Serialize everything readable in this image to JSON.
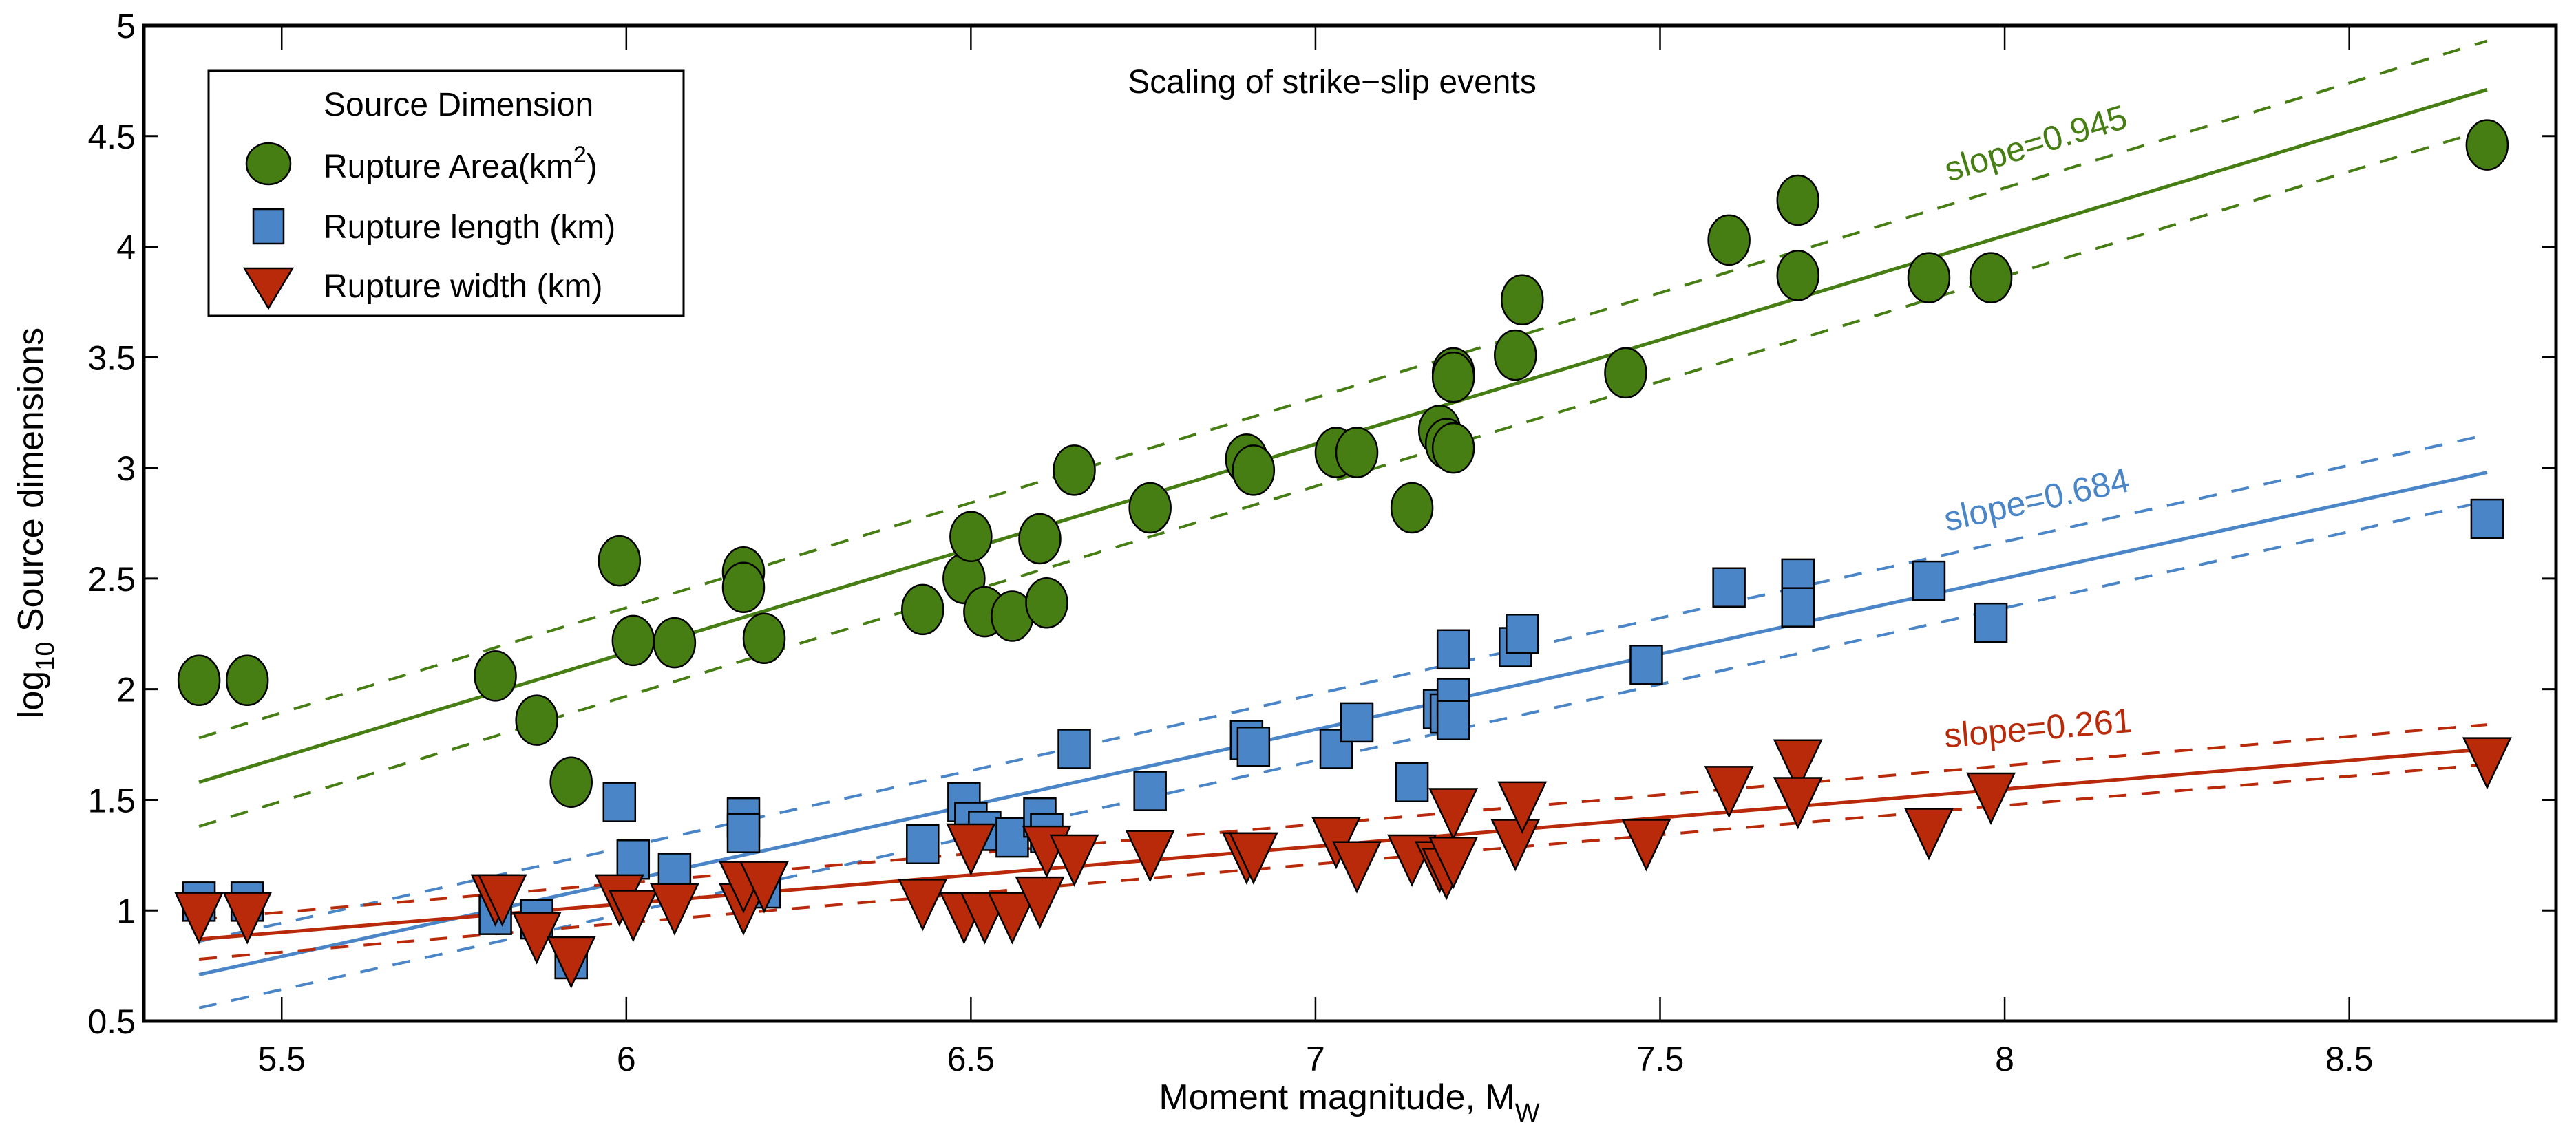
{
  "chart_data": {
    "type": "scatter",
    "title": "Scaling of strike−slip events",
    "xlabel": "Moment magnitude, M",
    "xlabel_subscript": "W",
    "ylabel_prefix": "log",
    "ylabel_subscript": "10",
    "ylabel_suffix": " Source dimensions",
    "xlim": [
      5.3,
      8.8
    ],
    "ylim": [
      0.5,
      5
    ],
    "xticks": [
      "5.5",
      "6",
      "6.5",
      "7",
      "7.5",
      "8",
      "8.5"
    ],
    "xtick_values": [
      5.5,
      6,
      6.5,
      7,
      7.5,
      8,
      8.5
    ],
    "yticks": [
      "0.5",
      "1",
      "1.5",
      "2",
      "2.5",
      "3",
      "3.5",
      "4",
      "4.5",
      "5"
    ],
    "ytick_values": [
      0.5,
      1,
      1.5,
      2,
      2.5,
      3,
      3.5,
      4,
      4.5,
      5
    ],
    "grid": false,
    "legend": {
      "placement": "top-left",
      "title": "Source Dimension",
      "entries": [
        {
          "label": "Rupture Area(km",
          "superscript": "2",
          "suffix": ")",
          "marker": "circle",
          "color": "#467e14"
        },
        {
          "label": "Rupture length (km)",
          "marker": "square",
          "color": "#4a85c8"
        },
        {
          "label": "Rupture width (km)",
          "marker": "triangle-down",
          "color": "#b82a0a"
        }
      ]
    },
    "series": [
      {
        "name": "Rupture Area(km2)",
        "marker": "circle",
        "color": "#467e14",
        "slope_label": "slope=0.945",
        "fit": {
          "x": [
            5.38,
            8.7
          ],
          "y": [
            1.58,
            4.71
          ],
          "band": 0.2
        },
        "points": [
          [
            5.38,
            2.04
          ],
          [
            5.45,
            2.04
          ],
          [
            5.81,
            2.06
          ],
          [
            5.87,
            1.86
          ],
          [
            5.92,
            1.58
          ],
          [
            5.99,
            2.58
          ],
          [
            6.01,
            2.22
          ],
          [
            6.07,
            2.21
          ],
          [
            6.17,
            2.53
          ],
          [
            6.17,
            2.46
          ],
          [
            6.2,
            2.23
          ],
          [
            6.43,
            2.36
          ],
          [
            6.49,
            2.5
          ],
          [
            6.5,
            2.69
          ],
          [
            6.52,
            2.35
          ],
          [
            6.56,
            2.33
          ],
          [
            6.6,
            2.68
          ],
          [
            6.61,
            2.39
          ],
          [
            6.65,
            2.99
          ],
          [
            6.76,
            2.82
          ],
          [
            6.9,
            3.04
          ],
          [
            6.91,
            2.99
          ],
          [
            7.03,
            3.07
          ],
          [
            7.06,
            3.07
          ],
          [
            7.14,
            2.82
          ],
          [
            7.18,
            3.17
          ],
          [
            7.19,
            3.11
          ],
          [
            7.2,
            3.09
          ],
          [
            7.2,
            3.43
          ],
          [
            7.2,
            3.41
          ],
          [
            7.29,
            3.51
          ],
          [
            7.3,
            3.76
          ],
          [
            7.45,
            3.43
          ],
          [
            7.6,
            4.03
          ],
          [
            7.7,
            4.21
          ],
          [
            7.7,
            3.87
          ],
          [
            7.89,
            3.86
          ],
          [
            7.98,
            3.86
          ],
          [
            8.7,
            4.46
          ]
        ]
      },
      {
        "name": "Rupture length (km)",
        "marker": "square",
        "color": "#4a85c8",
        "slope_label": "slope=0.684",
        "fit": {
          "x": [
            5.38,
            8.7
          ],
          "y": [
            0.71,
            2.98
          ],
          "band": 0.15
        },
        "points": [
          [
            5.38,
            1.04
          ],
          [
            5.45,
            1.04
          ],
          [
            5.81,
            0.98
          ],
          [
            5.87,
            0.96
          ],
          [
            5.92,
            0.78
          ],
          [
            5.99,
            1.49
          ],
          [
            6.01,
            1.23
          ],
          [
            6.07,
            1.17
          ],
          [
            6.17,
            1.42
          ],
          [
            6.17,
            1.35
          ],
          [
            6.2,
            1.1
          ],
          [
            6.43,
            1.3
          ],
          [
            6.49,
            1.49
          ],
          [
            6.5,
            1.4
          ],
          [
            6.52,
            1.36
          ],
          [
            6.56,
            1.33
          ],
          [
            6.6,
            1.42
          ],
          [
            6.61,
            1.35
          ],
          [
            6.65,
            1.73
          ],
          [
            6.76,
            1.54
          ],
          [
            6.9,
            1.77
          ],
          [
            6.91,
            1.74
          ],
          [
            7.03,
            1.73
          ],
          [
            7.06,
            1.85
          ],
          [
            7.14,
            1.58
          ],
          [
            7.18,
            1.91
          ],
          [
            7.19,
            1.89
          ],
          [
            7.2,
            1.96
          ],
          [
            7.2,
            2.18
          ],
          [
            7.2,
            1.86
          ],
          [
            7.29,
            2.19
          ],
          [
            7.3,
            2.25
          ],
          [
            7.48,
            2.11
          ],
          [
            7.6,
            2.46
          ],
          [
            7.7,
            2.5
          ],
          [
            7.7,
            2.37
          ],
          [
            7.89,
            2.49
          ],
          [
            7.98,
            2.3
          ],
          [
            8.7,
            2.77
          ]
        ]
      },
      {
        "name": "Rupture width (km)",
        "marker": "triangle-down",
        "color": "#b82a0a",
        "slope_label": "slope=0.261",
        "fit": {
          "x": [
            5.38,
            8.7
          ],
          "y": [
            0.87,
            1.73
          ],
          "band": 0.09
        },
        "points": [
          [
            5.38,
            0.98
          ],
          [
            5.45,
            0.98
          ],
          [
            5.81,
            1.06
          ],
          [
            5.82,
            1.06
          ],
          [
            5.87,
            0.89
          ],
          [
            5.92,
            0.78
          ],
          [
            5.99,
            1.06
          ],
          [
            6.01,
            0.99
          ],
          [
            6.07,
            1.02
          ],
          [
            6.17,
            1.02
          ],
          [
            6.17,
            1.12
          ],
          [
            6.2,
            1.12
          ],
          [
            6.43,
            1.04
          ],
          [
            6.49,
            0.98
          ],
          [
            6.5,
            1.29
          ],
          [
            6.52,
            0.98
          ],
          [
            6.56,
            0.98
          ],
          [
            6.6,
            1.05
          ],
          [
            6.61,
            1.28
          ],
          [
            6.65,
            1.24
          ],
          [
            6.76,
            1.26
          ],
          [
            6.9,
            1.25
          ],
          [
            6.91,
            1.25
          ],
          [
            7.03,
            1.32
          ],
          [
            7.06,
            1.21
          ],
          [
            7.14,
            1.24
          ],
          [
            7.18,
            1.21
          ],
          [
            7.19,
            1.18
          ],
          [
            7.2,
            1.45
          ],
          [
            7.2,
            1.23
          ],
          [
            7.29,
            1.31
          ],
          [
            7.3,
            1.48
          ],
          [
            7.48,
            1.31
          ],
          [
            7.6,
            1.55
          ],
          [
            7.7,
            1.67
          ],
          [
            7.7,
            1.5
          ],
          [
            7.89,
            1.36
          ],
          [
            7.98,
            1.52
          ],
          [
            8.7,
            1.68
          ]
        ]
      }
    ]
  }
}
